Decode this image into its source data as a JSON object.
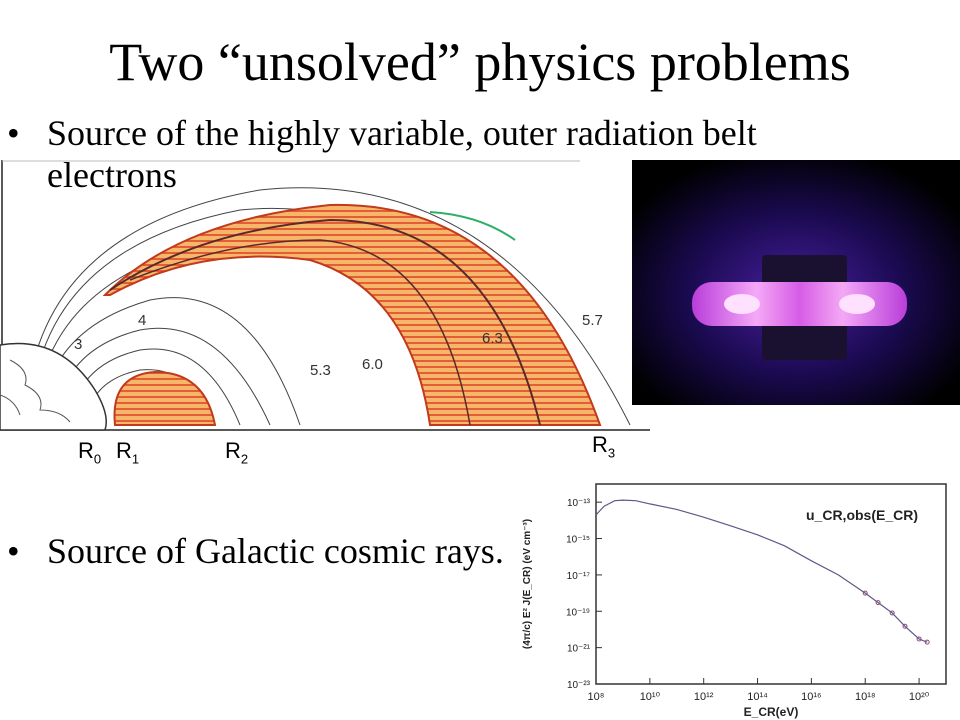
{
  "slide": {
    "title": "Two “unsolved” physics problems",
    "bullet_symbol": "•",
    "bullets": [
      {
        "text": "Source of the highly variable, outer radiation belt electrons"
      },
      {
        "text": "Source of Galactic cosmic rays."
      }
    ]
  },
  "belt_figure": {
    "l_shell_labels": [
      "3",
      "4",
      "5.3",
      "6.0",
      "6.3",
      "5.7"
    ],
    "radius_labels": [
      {
        "base": "R",
        "sub": "0"
      },
      {
        "base": "R",
        "sub": "1"
      },
      {
        "base": "R",
        "sub": "2"
      },
      {
        "base": "R",
        "sub": "3"
      }
    ],
    "colors": {
      "belt_fill": "#f08a3c",
      "belt_light": "#f7c98a",
      "earth_line": "#333333"
    }
  },
  "photo": {
    "colors": {
      "glow": "#ff66ff",
      "background": "#000000"
    }
  },
  "chart_data": {
    "type": "line",
    "title": "u_CR,obs(E_CR)",
    "xlabel": "E_CR(eV)",
    "ylabel": "(4π/c) E² J(E_CR) (eV cm⁻³)",
    "x_scale": "log",
    "y_scale": "log",
    "xlim": [
      100000000.0,
      1e+21
    ],
    "ylim": [
      1e-23,
      1e-12
    ],
    "x_tick_labels": [
      "10⁸",
      "10¹⁰",
      "10¹²",
      "10¹⁴",
      "10¹⁶",
      "10¹⁸",
      "10²⁰"
    ],
    "y_tick_labels": [
      "10⁻¹³",
      "10⁻¹⁵",
      "10⁻¹⁷",
      "10⁻¹⁹",
      "10⁻²¹",
      "10⁻²³"
    ],
    "series": [
      {
        "x": [
          100000000.0,
          200000000.0,
          500000000.0,
          1000000000.0,
          3000000000.0,
          10000000000.0,
          100000000000.0,
          1000000000000.0,
          10000000000000.0,
          100000000000000.0,
          1000000000000000.0,
          1e+16,
          1e+17,
          1e+18,
          3e+18,
          1e+19,
          3e+19,
          1e+20,
          2e+20
        ],
        "y": [
          2e-14,
          6e-14,
          1.2e-13,
          1.3e-13,
          1.2e-13,
          8e-14,
          4e-14,
          1.5e-14,
          5e-15,
          1.6e-15,
          4e-16,
          6e-17,
          1e-17,
          1e-18,
          3e-19,
          8e-20,
          1.5e-20,
          3e-21,
          2e-21
        ]
      }
    ],
    "grid": false,
    "colors": {
      "line": "#5a5a8a",
      "points": "#8a4a7a"
    }
  }
}
